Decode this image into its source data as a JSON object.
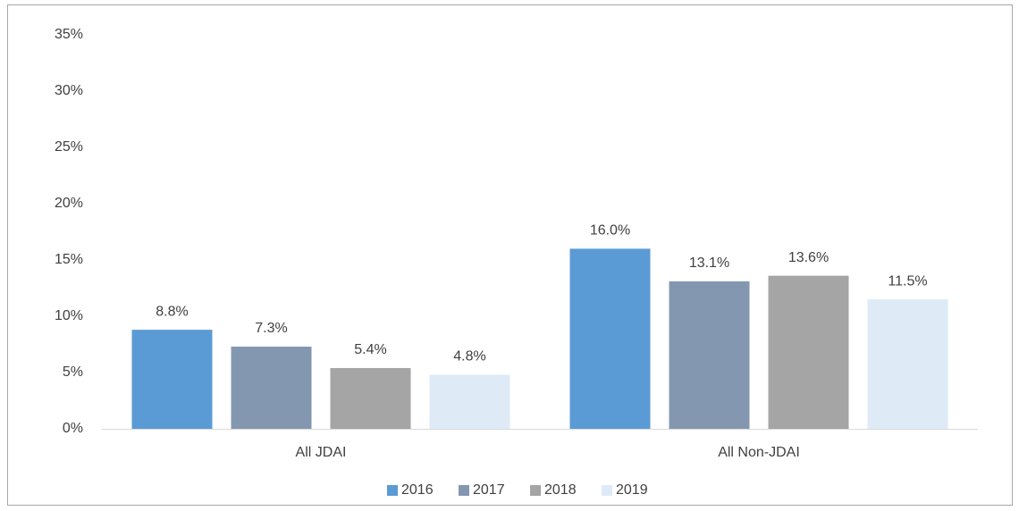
{
  "chart_data": {
    "type": "bar",
    "categories": [
      "All JDAI",
      "All Non-JDAI"
    ],
    "series": [
      {
        "name": "2016",
        "color": "#5b9bd5",
        "values": [
          8.8,
          16.0
        ],
        "value_labels": [
          "8.8%",
          "16.0%"
        ]
      },
      {
        "name": "2017",
        "color": "#8497b0",
        "values": [
          7.3,
          13.1
        ],
        "value_labels": [
          "7.3%",
          "13.1%"
        ]
      },
      {
        "name": "2018",
        "color": "#a5a5a5",
        "values": [
          5.4,
          13.6
        ],
        "value_labels": [
          "5.4%",
          "13.6%"
        ]
      },
      {
        "name": "2019",
        "color": "#deebf7",
        "values": [
          4.8,
          11.5
        ],
        "value_labels": [
          "4.8%",
          "11.5%"
        ]
      }
    ],
    "ylim": [
      0,
      35
    ],
    "yticks": [
      {
        "value": 0,
        "label": "0%"
      },
      {
        "value": 5,
        "label": "5%"
      },
      {
        "value": 10,
        "label": "10%"
      },
      {
        "value": 15,
        "label": "15%"
      },
      {
        "value": 20,
        "label": "20%"
      },
      {
        "value": 25,
        "label": "25%"
      },
      {
        "value": 30,
        "label": "30%"
      },
      {
        "value": 35,
        "label": "35%"
      }
    ],
    "grid": false,
    "legend": "bottom"
  }
}
